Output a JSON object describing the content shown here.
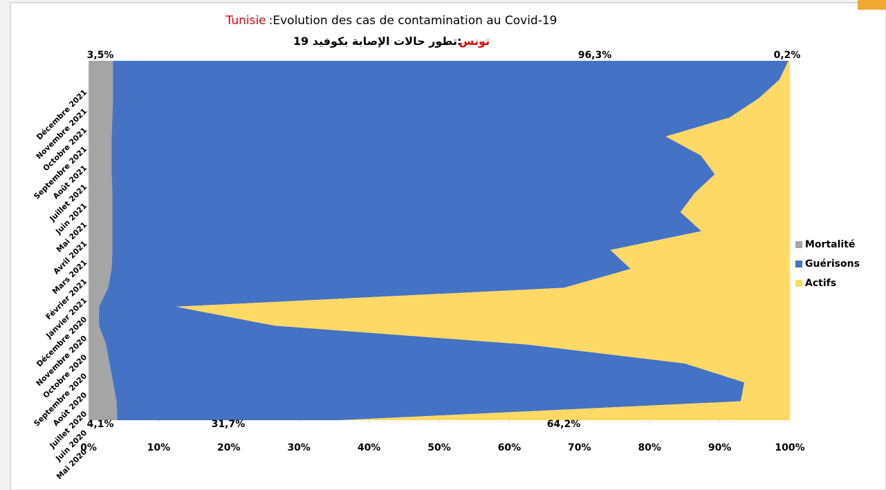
{
  "chart_data": {
    "type": "stacked_area_horizontal",
    "title_highlight": "Tunisie",
    "title": ":Evolution  des cas de contamination  au Covid-19",
    "subtitle_highlight": "تونس",
    "subtitle": ":تطور حالات الإصابة بكوفيد 19",
    "categories": [
      "Mai 2020",
      "Juin 2020",
      "Juillet 2020",
      "Août 2020",
      "Septembre 2020",
      "Octobre 2020",
      "Novembre 2020",
      "Décembre 2020",
      "Janvier 2021",
      "Février 2021",
      "Mars 2021",
      "Avril 2021",
      "Mai 2021",
      "Juin 2021",
      "Juillet 2021",
      "Août 2021",
      "Septembre 2021",
      "Octobre 2021",
      "Novembre 2021",
      "Décembre 2021"
    ],
    "series": [
      {
        "name": "Mortalité",
        "color": "#a5a5a5",
        "values": [
          4.1,
          4,
          3.5,
          3,
          2.5,
          1.5,
          1.5,
          2.8,
          3.3,
          3.4,
          3.4,
          3.4,
          3.4,
          3.3,
          3.3,
          3.3,
          3.4,
          3.5,
          3.5,
          3.5
        ]
      },
      {
        "name": "Guérisons",
        "color": "#4472c4",
        "values": [
          31.7,
          89,
          90,
          82,
          60,
          25,
          11,
          65,
          74,
          71,
          84,
          81,
          83,
          86,
          84,
          79,
          88,
          92,
          95,
          96.3
        ]
      },
      {
        "name": "Actifs",
        "color": "#ffd966",
        "values": [
          64.2,
          7,
          6.5,
          15,
          37.5,
          73.5,
          87.5,
          32.2,
          22.7,
          25.6,
          12.6,
          15.6,
          13.6,
          10.7,
          12.7,
          17.7,
          8.6,
          4.5,
          1.5,
          0.2
        ]
      }
    ],
    "xlim": [
      0,
      100
    ],
    "xticks": [
      {
        "value": 0,
        "label": "0%"
      },
      {
        "value": 10,
        "label": "10%"
      },
      {
        "value": 20,
        "label": "20%"
      },
      {
        "value": 30,
        "label": "30%"
      },
      {
        "value": 40,
        "label": "40%"
      },
      {
        "value": 50,
        "label": "50%"
      },
      {
        "value": 60,
        "label": "60%"
      },
      {
        "value": 70,
        "label": "70%"
      },
      {
        "value": 80,
        "label": "80%"
      },
      {
        "value": 90,
        "label": "90%"
      },
      {
        "value": 100,
        "label": "100%"
      }
    ],
    "annotations": [
      "3,5%",
      "96,3%",
      "0,2%",
      "4,1%",
      "31,7%",
      "64,2%"
    ],
    "legend": "right"
  }
}
